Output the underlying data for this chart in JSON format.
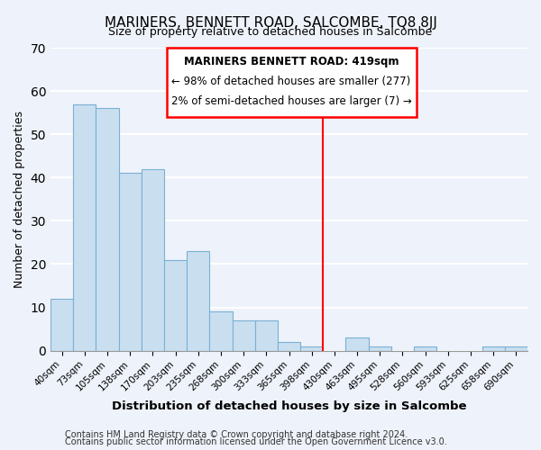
{
  "title": "MARINERS, BENNETT ROAD, SALCOMBE, TQ8 8JJ",
  "subtitle": "Size of property relative to detached houses in Salcombe",
  "xlabel": "Distribution of detached houses by size in Salcombe",
  "ylabel": "Number of detached properties",
  "bar_labels": [
    "40sqm",
    "73sqm",
    "105sqm",
    "138sqm",
    "170sqm",
    "203sqm",
    "235sqm",
    "268sqm",
    "300sqm",
    "333sqm",
    "365sqm",
    "398sqm",
    "430sqm",
    "463sqm",
    "495sqm",
    "528sqm",
    "560sqm",
    "593sqm",
    "625sqm",
    "658sqm",
    "690sqm"
  ],
  "bar_heights": [
    12,
    57,
    56,
    41,
    42,
    21,
    23,
    9,
    7,
    7,
    2,
    1,
    0,
    3,
    1,
    0,
    1,
    0,
    0,
    1,
    1
  ],
  "bar_color": "#c9dff0",
  "bar_edge_color": "#7ab0d4",
  "marker_label_line1": "MARINERS BENNETT ROAD: 419sqm",
  "marker_label_line2": "← 98% of detached houses are smaller (277)",
  "marker_label_line3": "2% of semi-detached houses are larger (7) →",
  "marker_color": "red",
  "ylim": [
    0,
    70
  ],
  "yticks": [
    0,
    10,
    20,
    30,
    40,
    50,
    60,
    70
  ],
  "bg_color": "#eef2fa",
  "grid_color": "#ffffff",
  "footnote1": "Contains HM Land Registry data © Crown copyright and database right 2024.",
  "footnote2": "Contains public sector information licensed under the Open Government Licence v3.0."
}
